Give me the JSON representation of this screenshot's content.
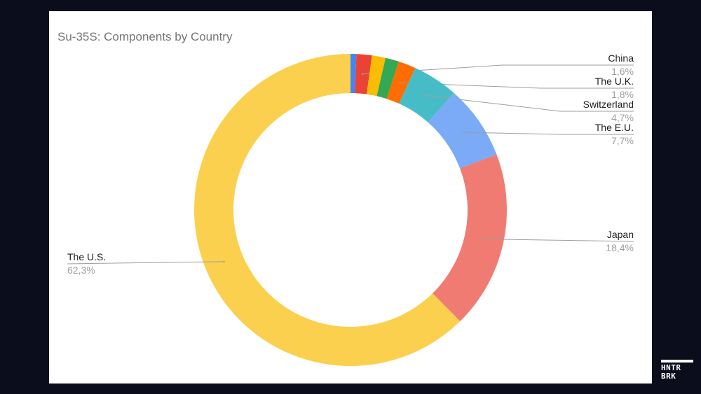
{
  "chart_data": {
    "type": "pie",
    "variant": "donut",
    "title": "Su-35S: Components by Country",
    "slices": [
      {
        "label": "",
        "value": 0.6,
        "color": "#4285F4"
      },
      {
        "label": "China",
        "value": 1.6,
        "display": "1,6%",
        "color": "#EA4335"
      },
      {
        "label": "",
        "value": 1.4,
        "color": "#FBBC04"
      },
      {
        "label": "",
        "value": 1.4,
        "color": "#34A853"
      },
      {
        "label": "The U.K.",
        "value": 1.8,
        "display": "1,8%",
        "color": "#FF6D01"
      },
      {
        "label": "Switzerland",
        "value": 4.7,
        "display": "4,7%",
        "color": "#46BDC6"
      },
      {
        "label": "The E.U.",
        "value": 7.7,
        "display": "7,7%",
        "color": "#7BAAF7"
      },
      {
        "label": "Japan",
        "value": 18.4,
        "display": "18,4%",
        "color": "#F07B72"
      },
      {
        "label": "The U.S.",
        "value": 62.3,
        "display": "62,3%",
        "color": "#FCD04F"
      }
    ]
  },
  "logo_text": "HNTR BRK"
}
